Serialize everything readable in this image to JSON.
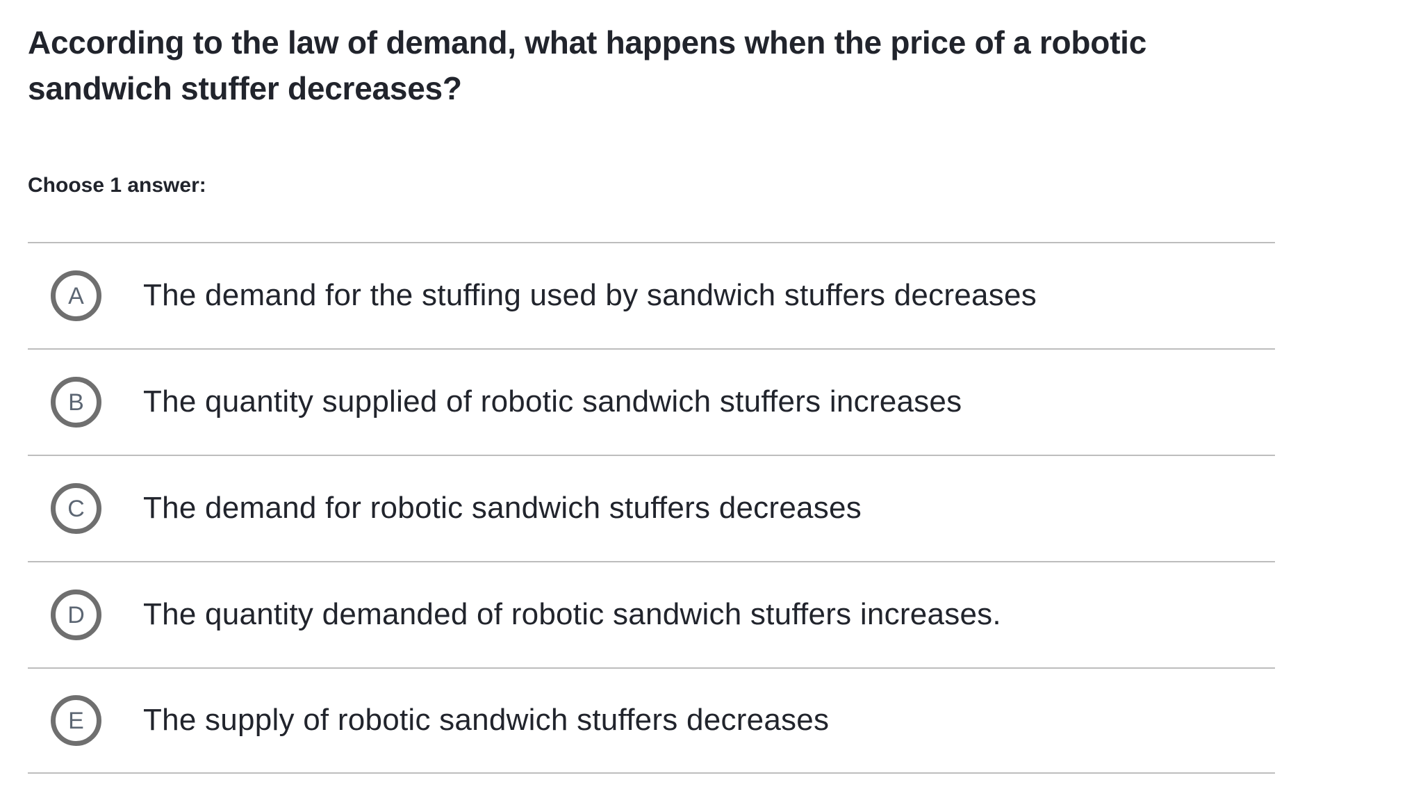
{
  "question": {
    "title": "According to the law of demand, what happens when the price of a robotic sandwich stuffer decreases?",
    "choose_prompt": "Choose 1 answer:"
  },
  "options": [
    {
      "letter": "A",
      "text": "The demand for the stuffing used by sandwich stuffers decreases"
    },
    {
      "letter": "B",
      "text": "The quantity supplied of robotic sandwich stuffers increases"
    },
    {
      "letter": "C",
      "text": "The demand for robotic sandwich stuffers decreases"
    },
    {
      "letter": "D",
      "text": "The quantity demanded of robotic sandwich stuffers increases."
    },
    {
      "letter": "E",
      "text": "The supply of robotic sandwich stuffers decreases"
    }
  ],
  "colors": {
    "text": "#21242c",
    "radio_border": "#6f6f6f",
    "radio_letter": "#5c6673",
    "divider": "#bdbdbd",
    "background": "#ffffff"
  }
}
